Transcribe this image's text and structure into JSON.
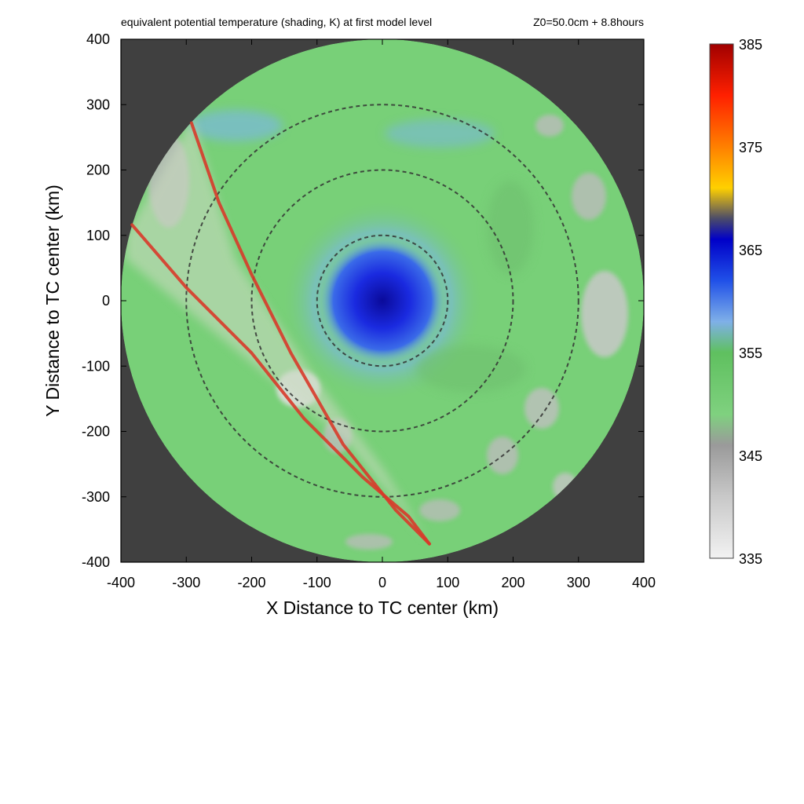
{
  "chart_data": {
    "type": "heatmap",
    "title": "equivalent potential temperature (shading, K) at first model level",
    "subtitle": "Z0=50.0cm  + 8.8hours",
    "xlabel": "X Distance to TC center (km)",
    "ylabel": "Y Distance to TC center (km)",
    "xlim": [
      -400,
      400
    ],
    "ylim": [
      -400,
      400
    ],
    "x_ticks": [
      -400,
      -300,
      -200,
      -100,
      0,
      100,
      200,
      300,
      400
    ],
    "y_ticks": [
      -400,
      -300,
      -200,
      -100,
      0,
      100,
      200,
      300,
      400
    ],
    "grid": false,
    "domain_radius_km": 400,
    "range_rings_km": [
      100,
      200,
      300
    ],
    "colorbar": {
      "min": 335,
      "max": 385,
      "ticks": [
        335,
        345,
        355,
        365,
        375,
        385
      ],
      "position": "right",
      "stops": [
        {
          "value": 335,
          "color": "#f2f2f2"
        },
        {
          "value": 341,
          "color": "#c8c8c8"
        },
        {
          "value": 346,
          "color": "#9a9a9a"
        },
        {
          "value": 349,
          "color": "#7fd17f"
        },
        {
          "value": 355,
          "color": "#5fc05f"
        },
        {
          "value": 358,
          "color": "#7fb0e8"
        },
        {
          "value": 362,
          "color": "#2050e8"
        },
        {
          "value": 366,
          "color": "#0000c8"
        },
        {
          "value": 368,
          "color": "#4a4a6a"
        },
        {
          "value": 371,
          "color": "#ffd000"
        },
        {
          "value": 375,
          "color": "#ff8000"
        },
        {
          "value": 380,
          "color": "#ff2000"
        },
        {
          "value": 385,
          "color": "#a00000"
        }
      ]
    },
    "field_features": {
      "background_outside_domain": "#404040",
      "eye_center_km": [
        0,
        0
      ],
      "eye_high_theta_radius_km": 70
    },
    "series": [
      {
        "color": "#d83a2a",
        "points": [
          [
            -292,
            272
          ],
          [
            -250,
            150
          ],
          [
            -200,
            40
          ],
          [
            -140,
            -80
          ],
          [
            -60,
            -220
          ],
          [
            20,
            -320
          ],
          [
            72,
            -372
          ]
        ]
      },
      {
        "color": "#d83a2a",
        "points": [
          [
            -383,
            116
          ],
          [
            -300,
            20
          ],
          [
            -200,
            -80
          ],
          [
            -120,
            -180
          ],
          [
            -30,
            -270
          ],
          [
            40,
            -330
          ],
          [
            72,
            -372
          ]
        ]
      }
    ]
  }
}
